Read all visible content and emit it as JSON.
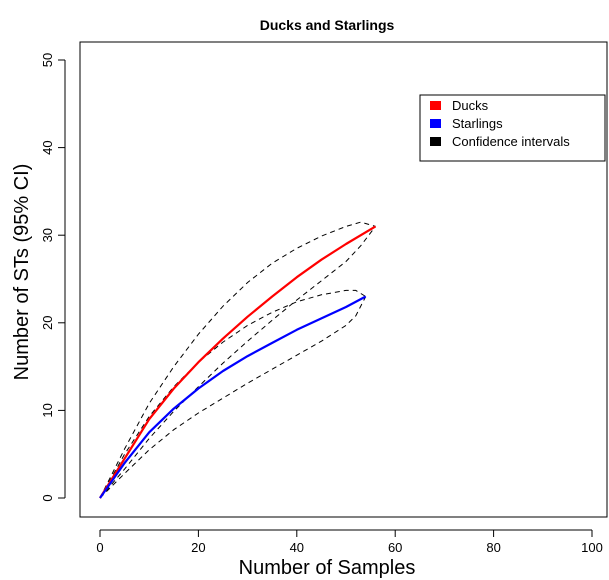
{
  "chart_data": {
    "type": "line",
    "title": "Ducks and Starlings",
    "xlabel": "Number of Samples",
    "ylabel": "Number of STs (95% CI)",
    "xlim": [
      0,
      100
    ],
    "ylim": [
      0,
      50
    ],
    "xticks": [
      0,
      20,
      40,
      60,
      80,
      100
    ],
    "yticks": [
      0,
      10,
      20,
      30,
      40,
      50
    ],
    "legend_position": "top-right",
    "grid": false,
    "series": [
      {
        "name": "Ducks",
        "color": "#ff0000",
        "style": "solid",
        "x": [
          0,
          5,
          10,
          15,
          20,
          25,
          30,
          35,
          40,
          45,
          50,
          56
        ],
        "y": [
          0,
          4.5,
          9.0,
          12.5,
          15.5,
          18.2,
          20.7,
          23.0,
          25.2,
          27.2,
          29.0,
          31.0
        ]
      },
      {
        "name": "Starlings",
        "color": "#0000ff",
        "style": "solid",
        "x": [
          0,
          5,
          10,
          15,
          20,
          25,
          30,
          35,
          40,
          45,
          50,
          54
        ],
        "y": [
          0,
          4.0,
          7.5,
          10.2,
          12.5,
          14.5,
          16.2,
          17.7,
          19.2,
          20.5,
          21.8,
          23.0
        ]
      },
      {
        "name": "Confidence intervals",
        "color": "#000000",
        "style": "dashed",
        "in_legend": true,
        "bands": [
          {
            "upper": {
              "x": [
                0,
                5,
                10,
                15,
                20,
                25,
                30,
                35,
                40,
                45,
                50,
                53,
                56
              ],
              "y": [
                0,
                5.6,
                10.8,
                15.0,
                18.7,
                21.9,
                24.6,
                26.8,
                28.5,
                29.9,
                31.0,
                31.5,
                31.0
              ]
            },
            "lower": {
              "x": [
                0,
                5,
                10,
                15,
                20,
                25,
                30,
                35,
                40,
                45,
                50,
                53,
                56
              ],
              "y": [
                0,
                3.3,
                6.8,
                9.9,
                12.7,
                15.4,
                17.9,
                20.3,
                22.6,
                24.8,
                27.0,
                28.8,
                31.0
              ]
            }
          },
          {
            "upper": {
              "x": [
                0,
                5,
                10,
                15,
                20,
                25,
                30,
                35,
                40,
                45,
                50,
                52,
                54
              ],
              "y": [
                0,
                5.0,
                9.3,
                12.7,
                15.5,
                17.8,
                19.7,
                21.2,
                22.4,
                23.2,
                23.7,
                23.7,
                23.0
              ]
            },
            "lower": {
              "x": [
                0,
                5,
                10,
                15,
                20,
                25,
                30,
                35,
                40,
                45,
                50,
                52,
                54
              ],
              "y": [
                0,
                2.8,
                5.5,
                7.8,
                9.7,
                11.4,
                13.1,
                14.7,
                16.3,
                17.9,
                19.7,
                20.8,
                23.0
              ]
            }
          }
        ]
      }
    ]
  }
}
